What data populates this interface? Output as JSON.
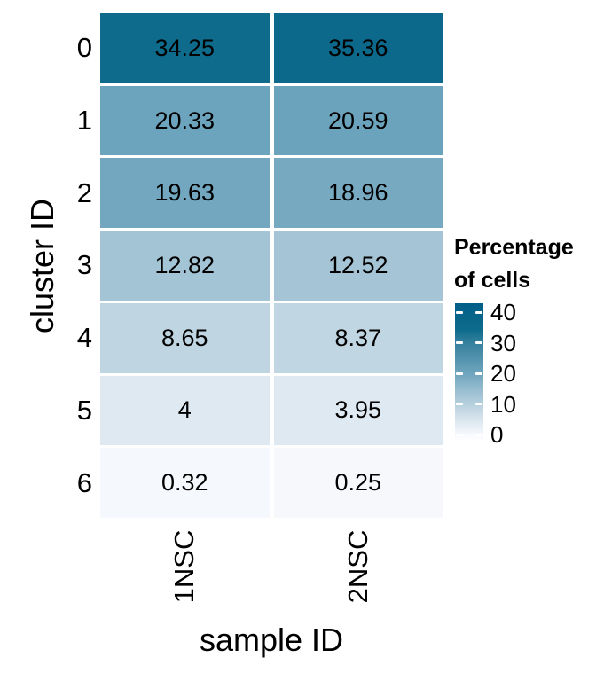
{
  "chart_data": {
    "type": "heatmap",
    "xlabel": "sample ID",
    "ylabel": "cluster ID",
    "columns": [
      "1NSC",
      "2NSC"
    ],
    "rows": [
      "0",
      "1",
      "2",
      "3",
      "4",
      "5",
      "6"
    ],
    "values": [
      [
        34.25,
        35.36
      ],
      [
        20.33,
        20.59
      ],
      [
        19.63,
        18.96
      ],
      [
        12.82,
        12.52
      ],
      [
        8.65,
        8.37
      ],
      [
        4,
        3.95
      ],
      [
        0.32,
        0.25
      ]
    ],
    "cell_labels": [
      [
        "34.25",
        "35.36"
      ],
      [
        "20.33",
        "20.59"
      ],
      [
        "19.63",
        "18.96"
      ],
      [
        "12.82",
        "12.52"
      ],
      [
        "8.65",
        "8.37"
      ],
      [
        "4",
        "3.95"
      ],
      [
        "0.32",
        "0.25"
      ]
    ],
    "grid": true,
    "legend": {
      "position": "right",
      "title_lines": [
        "Percentage",
        "of cells"
      ],
      "ticks": [
        {
          "value": 40,
          "label": "40"
        },
        {
          "value": 30,
          "label": "30"
        },
        {
          "value": 20,
          "label": "20"
        },
        {
          "value": 10,
          "label": "10"
        },
        {
          "value": 0,
          "label": "0"
        }
      ],
      "bar_domain": [
        -2.3,
        42.9
      ]
    },
    "colors": {
      "background": "#ffffff",
      "text": "#000000",
      "cell_gap": "#ffffff",
      "scale_low": "#ffffff",
      "scale_high": "#015f88",
      "stops": [
        {
          "value": -2.3,
          "color": "#ffffff"
        },
        {
          "value": 0,
          "color": "#f7f9fd"
        },
        {
          "value": 4,
          "color": "#dfe9f1"
        },
        {
          "value": 8.65,
          "color": "#bfd5e2"
        },
        {
          "value": 12.82,
          "color": "#a3c4d5"
        },
        {
          "value": 20,
          "color": "#6fa5be"
        },
        {
          "value": 25,
          "color": "#5292ac"
        },
        {
          "value": 30,
          "color": "#35809d"
        },
        {
          "value": 34.25,
          "color": "#0e6b8c"
        },
        {
          "value": 42.9,
          "color": "#015f88"
        }
      ]
    }
  }
}
